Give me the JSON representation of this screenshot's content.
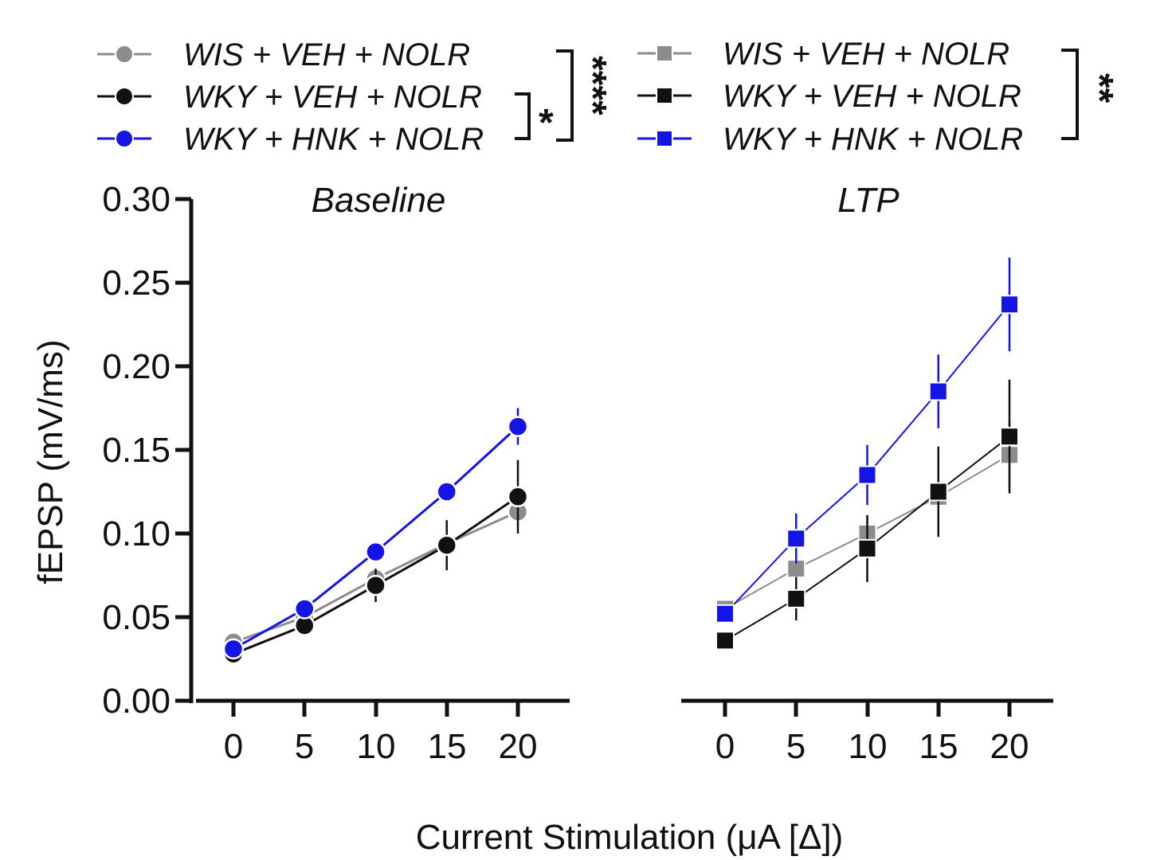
{
  "colors": {
    "grey": "#8c8c8c",
    "black": "#111111",
    "blue": "#1414e6"
  },
  "legend": {
    "circle": [
      {
        "label": "WIS + VEH + NOLR",
        "color": "#8c8c8c"
      },
      {
        "label": "WKY + VEH + NOLR",
        "color": "#111111"
      },
      {
        "label": "WKY + HNK + NOLR",
        "color": "#1414e6"
      }
    ],
    "square": [
      {
        "label": "WIS + VEH + NOLR",
        "color": "#8c8c8c"
      },
      {
        "label": "WKY + VEH + NOLR",
        "color": "#111111"
      },
      {
        "label": "WKY + HNK + NOLR",
        "color": "#1414e6"
      }
    ],
    "sig_circle_inner": "*",
    "sig_circle_outer": "****",
    "sig_square": "**"
  },
  "chart_data": [
    {
      "type": "line",
      "title": "Baseline",
      "marker": "circle",
      "ylabel": "fEPSP (mV/ms)",
      "xlabel": "Current Stimulation (μA [Δ])",
      "ylim": [
        0,
        0.3
      ],
      "yticks": [
        "0.00",
        "0.05",
        "0.10",
        "0.15",
        "0.20",
        "0.25",
        "0.30"
      ],
      "x": [
        0,
        5,
        10,
        15,
        20
      ],
      "xticks": [
        "0",
        "5",
        "10",
        "15",
        "20"
      ],
      "series": [
        {
          "name": "WIS + VEH + NOLR",
          "color": "#8c8c8c",
          "values": [
            0.035,
            0.05,
            0.073,
            0.094,
            0.113
          ],
          "err": [
            0.003,
            0.004,
            0.006,
            0.008,
            0.008
          ]
        },
        {
          "name": "WKY + VEH + NOLR",
          "color": "#111111",
          "values": [
            0.028,
            0.045,
            0.069,
            0.093,
            0.122
          ],
          "err": [
            0.003,
            0.004,
            0.01,
            0.015,
            0.022
          ]
        },
        {
          "name": "WKY + HNK + NOLR",
          "color": "#1414e6",
          "values": [
            0.031,
            0.055,
            0.089,
            0.125,
            0.164
          ],
          "err": [
            0.003,
            0.004,
            0.005,
            0.006,
            0.011
          ]
        }
      ]
    },
    {
      "type": "line",
      "title": "LTP",
      "marker": "square",
      "ylim": [
        0,
        0.3
      ],
      "x": [
        0,
        5,
        10,
        15,
        20
      ],
      "xticks": [
        "0",
        "5",
        "10",
        "15",
        "20"
      ],
      "series": [
        {
          "name": "WIS + VEH + NOLR",
          "color": "#8c8c8c",
          "values": [
            0.055,
            0.079,
            0.1,
            0.122,
            0.147
          ],
          "err": [
            0.005,
            0.007,
            0.01,
            0.02,
            0.02
          ]
        },
        {
          "name": "WKY + VEH + NOLR",
          "color": "#111111",
          "values": [
            0.036,
            0.061,
            0.091,
            0.125,
            0.158
          ],
          "err": [
            0.004,
            0.013,
            0.02,
            0.027,
            0.034
          ]
        },
        {
          "name": "WKY + HNK + NOLR",
          "color": "#1414e6",
          "values": [
            0.052,
            0.097,
            0.135,
            0.185,
            0.237
          ],
          "err": [
            0.004,
            0.015,
            0.018,
            0.022,
            0.028
          ]
        }
      ]
    }
  ]
}
